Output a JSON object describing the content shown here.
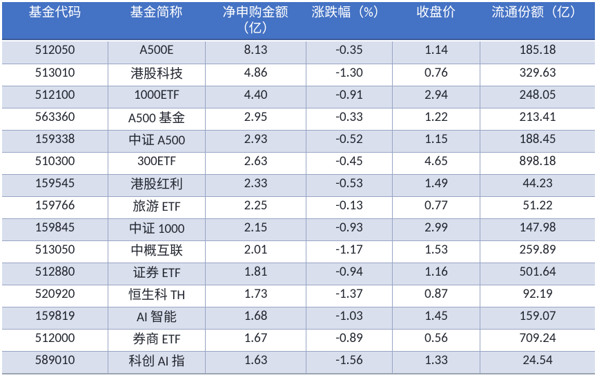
{
  "colors": {
    "header_bg": "#4472C4",
    "header_text": "#FFFFFF",
    "header_bottom_border": "#3D5B99",
    "band_row_bg": "#D9DFED",
    "plain_row_bg": "#FFFFFF",
    "grid_border": "#97A4C4",
    "table_bottom_border": "#9BA3B2",
    "body_text": "#21252E",
    "page_bg": "#FFFFFF"
  },
  "table": {
    "columns": [
      "基金代码",
      "基金简称",
      "净申购金额（亿）",
      "涨跌幅（%）",
      "收盘价",
      "流通份额（亿）"
    ],
    "rows": [
      [
        "512050",
        "A500E",
        "8.13",
        "-0.35",
        "1.14",
        "185.18"
      ],
      [
        "513010",
        "港股科技",
        "4.86",
        "-1.30",
        "0.76",
        "329.63"
      ],
      [
        "512100",
        "1000ETF",
        "4.40",
        "-0.91",
        "2.94",
        "248.05"
      ],
      [
        "563360",
        "A500 基金",
        "2.95",
        "-0.33",
        "1.22",
        "213.41"
      ],
      [
        "159338",
        "中证 A500",
        "2.93",
        "-0.52",
        "1.15",
        "188.45"
      ],
      [
        "510300",
        "300ETF",
        "2.63",
        "-0.45",
        "4.65",
        "898.18"
      ],
      [
        "159545",
        "港股红利",
        "2.33",
        "-0.53",
        "1.49",
        "44.23"
      ],
      [
        "159766",
        "旅游 ETF",
        "2.25",
        "-0.13",
        "0.77",
        "51.22"
      ],
      [
        "159845",
        "中证 1000",
        "2.15",
        "-0.93",
        "2.99",
        "147.98"
      ],
      [
        "513050",
        "中概互联",
        "2.01",
        "-1.17",
        "1.53",
        "259.89"
      ],
      [
        "512880",
        "证券 ETF",
        "1.81",
        "-0.94",
        "1.16",
        "501.64"
      ],
      [
        "520920",
        "恒生科 TH",
        "1.73",
        "-1.37",
        "0.87",
        "92.19"
      ],
      [
        "159819",
        "AI 智能",
        "1.68",
        "-1.03",
        "1.45",
        "159.07"
      ],
      [
        "512000",
        "券商 ETF",
        "1.67",
        "-0.89",
        "0.56",
        "709.24"
      ],
      [
        "589010",
        "科创 AI 指",
        "1.63",
        "-1.56",
        "1.33",
        "24.54"
      ]
    ]
  }
}
